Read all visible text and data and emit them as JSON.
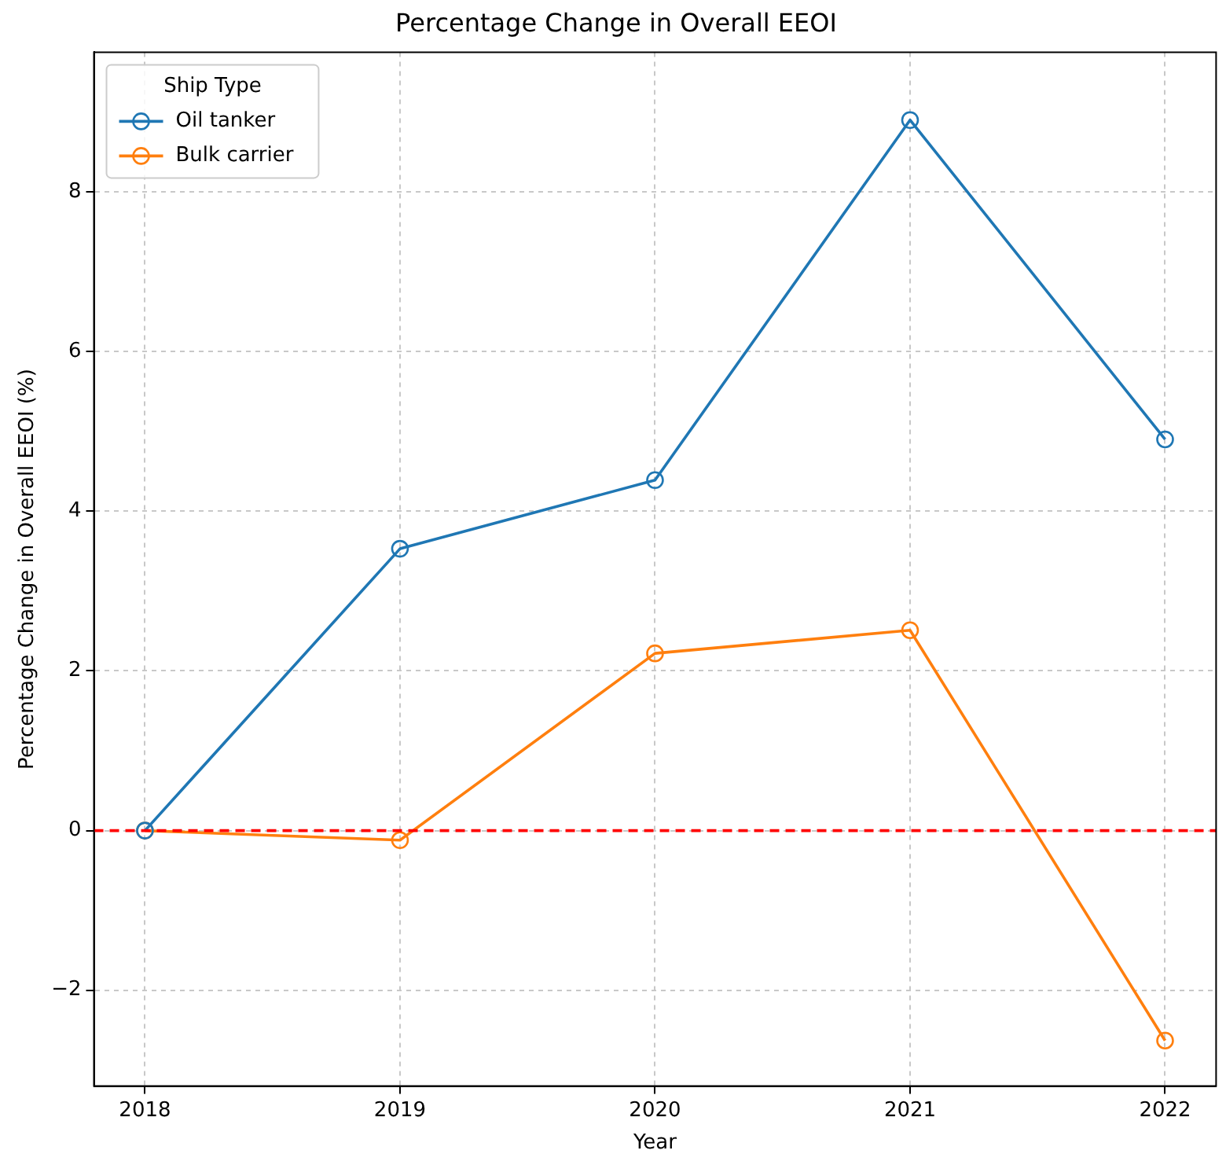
{
  "chart_data": {
    "type": "line",
    "title": "Percentage Change in Overall EEOI",
    "xlabel": "Year",
    "ylabel": "Percentage Change in Overall EEOI (%)",
    "legend_title": "Ship Type",
    "x": [
      2018,
      2019,
      2020,
      2021,
      2022
    ],
    "series": [
      {
        "name": "Oil tanker",
        "color": "#1f77b4",
        "values": [
          0,
          3.53,
          4.39,
          8.9,
          4.9
        ]
      },
      {
        "name": "Bulk carrier",
        "color": "#ff7f0e",
        "values": [
          0,
          -0.12,
          2.22,
          2.51,
          -2.63
        ]
      }
    ],
    "xlim": [
      2017.8,
      2022.2
    ],
    "xticks": [
      2018,
      2019,
      2020,
      2021,
      2022
    ],
    "ylim": [
      -3.2,
      9.75
    ],
    "yticks": [
      -2,
      0,
      2,
      4,
      6,
      8
    ],
    "ref_lines": [
      {
        "axis": "y",
        "value": 0,
        "color": "#ff0000",
        "line_style": "dashed"
      }
    ],
    "grid": true,
    "legend": "top left",
    "marker": "circle",
    "line_style": "solid"
  }
}
